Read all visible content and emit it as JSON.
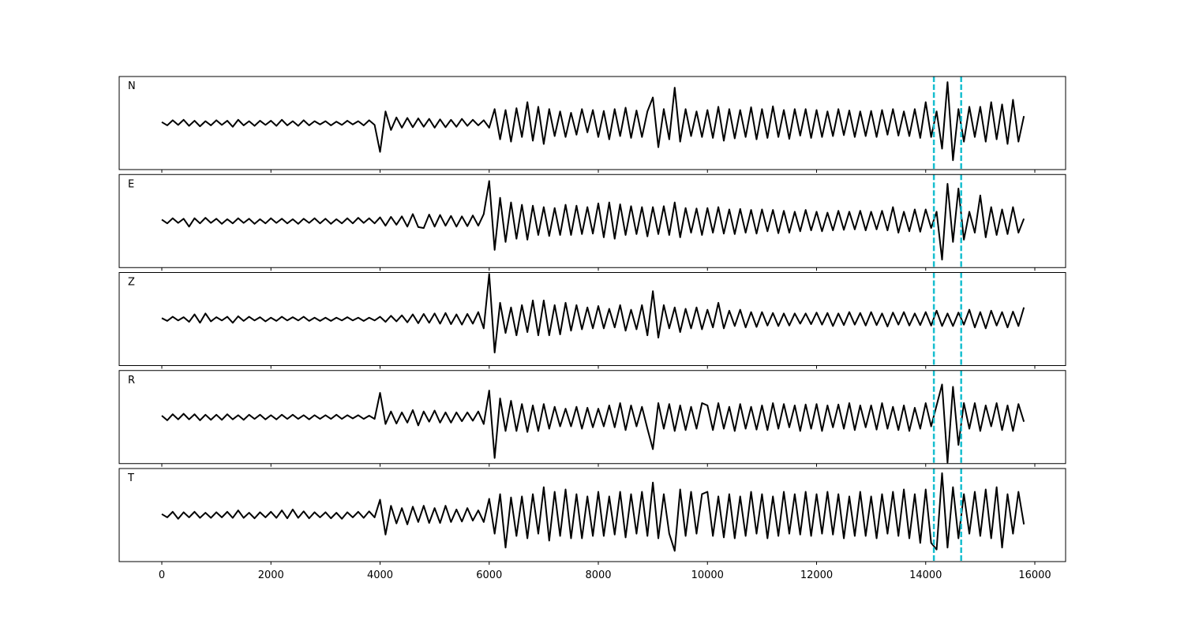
{
  "chart_data": {
    "type": "line",
    "xlim": [
      -781,
      16564
    ],
    "xticks": [
      0,
      2000,
      4000,
      6000,
      8000,
      10000,
      12000,
      14000,
      16000
    ],
    "ylim": [
      -1,
      1
    ],
    "line_color": "#000000",
    "vlines": {
      "values": [
        14150,
        14650
      ],
      "color": "#17becf",
      "style": "dashed"
    },
    "x": [
      0,
      100,
      200,
      300,
      400,
      500,
      600,
      700,
      800,
      900,
      1000,
      1100,
      1200,
      1300,
      1400,
      1500,
      1600,
      1700,
      1800,
      1900,
      2000,
      2100,
      2200,
      2300,
      2400,
      2500,
      2600,
      2700,
      2800,
      2900,
      3000,
      3100,
      3200,
      3300,
      3400,
      3500,
      3600,
      3700,
      3800,
      3900,
      4000,
      4100,
      4200,
      4300,
      4400,
      4500,
      4600,
      4700,
      4800,
      4900,
      5000,
      5100,
      5200,
      5300,
      5400,
      5500,
      5600,
      5700,
      5800,
      5900,
      6000,
      6100,
      6200,
      6300,
      6400,
      6500,
      6600,
      6700,
      6800,
      6900,
      7000,
      7100,
      7200,
      7300,
      7400,
      7500,
      7600,
      7700,
      7800,
      7900,
      8000,
      8100,
      8200,
      8300,
      8400,
      8500,
      8600,
      8700,
      8800,
      8900,
      9000,
      9100,
      9200,
      9300,
      9400,
      9500,
      9600,
      9700,
      9800,
      9900,
      10000,
      10100,
      10200,
      10300,
      10400,
      10500,
      10600,
      10700,
      10800,
      10900,
      11000,
      11100,
      11200,
      11300,
      11400,
      11500,
      11600,
      11700,
      11800,
      11900,
      12000,
      12100,
      12200,
      12300,
      12400,
      12500,
      12600,
      12700,
      12800,
      12900,
      13000,
      13100,
      13200,
      13300,
      13400,
      13500,
      13600,
      13700,
      13800,
      13900,
      14000,
      14100,
      14200,
      14300,
      14400,
      14500,
      14600,
      14700,
      14800,
      14900,
      15000,
      15100,
      15200,
      15300,
      15400,
      15500,
      15600,
      15700,
      15800
    ],
    "panels": [
      {
        "label": "N",
        "values": [
          0.02,
          -0.05,
          0.06,
          -0.04,
          0.07,
          -0.06,
          0.05,
          -0.07,
          0.04,
          -0.05,
          0.06,
          -0.04,
          0.05,
          -0.08,
          0.07,
          -0.05,
          0.04,
          -0.06,
          0.05,
          -0.04,
          0.05,
          -0.06,
          0.07,
          -0.05,
          0.04,
          -0.06,
          0.06,
          -0.05,
          0.04,
          -0.03,
          0.04,
          -0.05,
          0.03,
          -0.04,
          0.05,
          -0.03,
          0.04,
          -0.05,
          0.06,
          -0.04,
          -0.62,
          0.25,
          -0.15,
          0.12,
          -0.1,
          0.11,
          -0.09,
          0.1,
          -0.08,
          0.09,
          -0.1,
          0.08,
          -0.09,
          0.07,
          -0.08,
          0.09,
          -0.06,
          0.07,
          -0.05,
          0.06,
          -0.1,
          0.3,
          -0.35,
          0.28,
          -0.4,
          0.32,
          -0.3,
          0.45,
          -0.38,
          0.35,
          -0.45,
          0.3,
          -0.28,
          0.25,
          -0.3,
          0.22,
          -0.25,
          0.3,
          -0.2,
          0.28,
          -0.3,
          0.26,
          -0.35,
          0.3,
          -0.28,
          0.33,
          -0.32,
          0.27,
          -0.3,
          0.25,
          0.55,
          -0.52,
          0.3,
          -0.35,
          0.76,
          -0.4,
          0.3,
          -0.28,
          0.25,
          -0.3,
          0.28,
          -0.32,
          0.35,
          -0.38,
          0.3,
          -0.33,
          0.28,
          -0.3,
          0.34,
          -0.35,
          0.3,
          -0.32,
          0.36,
          -0.3,
          0.28,
          -0.34,
          0.3,
          -0.27,
          0.3,
          -0.32,
          0.28,
          -0.3,
          0.25,
          -0.28,
          0.3,
          -0.26,
          0.27,
          -0.3,
          0.25,
          -0.28,
          0.26,
          -0.3,
          0.28,
          -0.25,
          0.3,
          -0.27,
          0.25,
          -0.28,
          0.3,
          -0.32,
          0.45,
          -0.3,
          0.25,
          -0.55,
          0.88,
          -0.8,
          0.3,
          -0.4,
          0.35,
          -0.3,
          0.35,
          -0.4,
          0.45,
          -0.35,
          0.4,
          -0.45,
          0.5,
          -0.4,
          0.15
        ]
      },
      {
        "label": "E",
        "values": [
          0.03,
          -0.05,
          0.06,
          -0.04,
          0.05,
          -0.12,
          0.06,
          -0.05,
          0.07,
          -0.04,
          0.05,
          -0.06,
          0.04,
          -0.05,
          0.06,
          -0.04,
          0.05,
          -0.06,
          0.04,
          -0.05,
          0.06,
          -0.04,
          0.05,
          -0.05,
          0.04,
          -0.06,
          0.05,
          -0.04,
          0.06,
          -0.05,
          0.05,
          -0.06,
          0.04,
          -0.05,
          0.06,
          -0.05,
          0.07,
          -0.04,
          0.06,
          -0.05,
          0.08,
          -0.1,
          0.09,
          -0.08,
          0.1,
          -0.12,
          0.15,
          -0.13,
          -0.15,
          0.14,
          -0.12,
          0.13,
          -0.1,
          0.11,
          -0.12,
          0.1,
          -0.11,
          0.12,
          -0.1,
          0.15,
          0.86,
          -0.62,
          0.5,
          -0.45,
          0.4,
          -0.38,
          0.35,
          -0.4,
          0.33,
          -0.3,
          0.3,
          -0.32,
          0.28,
          -0.3,
          0.35,
          -0.3,
          0.33,
          -0.28,
          0.3,
          -0.27,
          0.38,
          -0.35,
          0.4,
          -0.38,
          0.36,
          -0.3,
          0.32,
          -0.28,
          0.3,
          -0.33,
          0.3,
          -0.28,
          0.32,
          -0.3,
          0.4,
          -0.35,
          0.28,
          -0.25,
          0.27,
          -0.3,
          0.28,
          -0.25,
          0.3,
          -0.27,
          0.25,
          -0.28,
          0.26,
          -0.25,
          0.24,
          -0.27,
          0.25,
          -0.22,
          0.24,
          -0.26,
          0.22,
          -0.25,
          0.2,
          -0.22,
          0.24,
          -0.2,
          0.2,
          -0.22,
          0.18,
          -0.2,
          0.22,
          -0.19,
          0.2,
          -0.18,
          0.22,
          -0.2,
          0.2,
          -0.18,
          0.22,
          -0.2,
          0.3,
          -0.25,
          0.2,
          -0.22,
          0.25,
          -0.23,
          0.25,
          -0.15,
          0.2,
          -0.83,
          0.8,
          -0.45,
          0.7,
          -0.4,
          0.2,
          -0.25,
          0.55,
          -0.35,
          0.3,
          -0.3,
          0.25,
          -0.28,
          0.3,
          -0.25,
          0.05
        ]
      },
      {
        "label": "Z",
        "values": [
          0.02,
          -0.04,
          0.05,
          -0.03,
          0.04,
          -0.06,
          0.1,
          -0.08,
          0.12,
          -0.05,
          0.04,
          -0.03,
          0.05,
          -0.08,
          0.06,
          -0.04,
          0.05,
          -0.03,
          0.04,
          -0.05,
          0.03,
          -0.04,
          0.05,
          -0.03,
          0.04,
          -0.03,
          0.05,
          -0.04,
          0.03,
          -0.04,
          0.03,
          -0.04,
          0.03,
          -0.03,
          0.04,
          -0.03,
          0.03,
          -0.04,
          0.03,
          -0.03,
          0.05,
          -0.06,
          0.07,
          -0.05,
          0.08,
          -0.07,
          0.1,
          -0.09,
          0.11,
          -0.08,
          0.12,
          -0.1,
          0.13,
          -0.11,
          0.1,
          -0.12,
          0.11,
          -0.1,
          0.15,
          -0.2,
          0.97,
          -0.72,
          0.35,
          -0.3,
          0.25,
          -0.35,
          0.3,
          -0.28,
          0.4,
          -0.35,
          0.4,
          -0.35,
          0.3,
          -0.33,
          0.35,
          -0.25,
          0.3,
          -0.22,
          0.25,
          -0.2,
          0.28,
          -0.2,
          0.22,
          -0.18,
          0.3,
          -0.25,
          0.2,
          -0.22,
          0.3,
          -0.35,
          0.6,
          -0.4,
          0.3,
          -0.2,
          0.25,
          -0.28,
          0.22,
          -0.2,
          0.25,
          -0.22,
          0.2,
          -0.18,
          0.35,
          -0.2,
          0.18,
          -0.15,
          0.2,
          -0.18,
          0.15,
          -0.17,
          0.15,
          -0.14,
          0.13,
          -0.15,
          0.12,
          -0.14,
          0.12,
          -0.1,
          0.12,
          -0.11,
          0.14,
          -0.12,
          0.13,
          -0.15,
          0.12,
          -0.13,
          0.15,
          -0.12,
          0.13,
          -0.14,
          0.15,
          -0.13,
          0.12,
          -0.16,
          0.14,
          -0.12,
          0.15,
          -0.14,
          0.12,
          -0.13,
          0.15,
          -0.14,
          0.18,
          -0.15,
          0.12,
          -0.15,
          0.14,
          -0.12,
          0.2,
          -0.18,
          0.15,
          -0.2,
          0.18,
          -0.14,
          0.15,
          -0.18,
          0.16,
          -0.15,
          0.25
        ]
      },
      {
        "label": "R",
        "values": [
          0.03,
          -0.07,
          0.06,
          -0.05,
          0.07,
          -0.05,
          0.06,
          -0.07,
          0.05,
          -0.06,
          0.05,
          -0.06,
          0.06,
          -0.05,
          0.04,
          -0.06,
          0.05,
          -0.04,
          0.05,
          -0.05,
          0.04,
          -0.05,
          0.05,
          -0.04,
          0.05,
          -0.04,
          0.04,
          -0.05,
          0.04,
          -0.04,
          0.04,
          -0.04,
          0.05,
          -0.04,
          0.04,
          -0.03,
          0.04,
          -0.04,
          0.03,
          -0.04,
          0.52,
          -0.15,
          0.12,
          -0.14,
          0.1,
          -0.12,
          0.15,
          -0.18,
          0.12,
          -0.1,
          0.14,
          -0.12,
          0.1,
          -0.12,
          0.1,
          -0.09,
          0.1,
          -0.08,
          0.12,
          -0.15,
          0.57,
          -0.88,
          0.4,
          -0.3,
          0.35,
          -0.3,
          0.28,
          -0.32,
          0.25,
          -0.3,
          0.28,
          -0.25,
          0.22,
          -0.2,
          0.18,
          -0.2,
          0.22,
          -0.25,
          0.2,
          -0.22,
          0.18,
          -0.2,
          0.25,
          -0.22,
          0.3,
          -0.28,
          0.25,
          -0.2,
          0.22,
          -0.25,
          -0.69,
          0.3,
          -0.25,
          0.28,
          -0.3,
          0.25,
          -0.28,
          0.22,
          -0.25,
          0.3,
          0.25,
          -0.28,
          0.3,
          -0.25,
          0.22,
          -0.3,
          0.28,
          -0.25,
          0.22,
          -0.27,
          0.25,
          -0.28,
          0.3,
          -0.25,
          0.28,
          -0.22,
          0.25,
          -0.3,
          0.27,
          -0.25,
          0.28,
          -0.3,
          0.25,
          -0.22,
          0.27,
          -0.25,
          0.3,
          -0.28,
          0.25,
          -0.22,
          0.25,
          -0.27,
          0.3,
          -0.25,
          0.22,
          -0.28,
          0.25,
          -0.3,
          0.2,
          -0.25,
          0.3,
          -0.2,
          0.25,
          0.7,
          -0.98,
          0.65,
          -0.6,
          0.3,
          -0.25,
          0.3,
          -0.3,
          0.25,
          -0.2,
          0.3,
          -0.28,
          0.25,
          -0.3,
          0.28,
          -0.1
        ]
      },
      {
        "label": "T",
        "values": [
          0.02,
          -0.05,
          0.07,
          -0.08,
          0.06,
          -0.05,
          0.07,
          -0.06,
          0.05,
          -0.06,
          0.06,
          -0.05,
          0.07,
          -0.06,
          0.1,
          -0.06,
          0.05,
          -0.07,
          0.06,
          -0.05,
          0.07,
          -0.06,
          0.1,
          -0.07,
          0.12,
          -0.06,
          0.08,
          -0.07,
          0.06,
          -0.05,
          0.06,
          -0.07,
          0.05,
          -0.08,
          0.06,
          -0.05,
          0.07,
          -0.06,
          0.08,
          -0.05,
          0.33,
          -0.42,
          0.2,
          -0.18,
          0.15,
          -0.2,
          0.18,
          -0.15,
          0.2,
          -0.17,
          0.15,
          -0.17,
          0.2,
          -0.15,
          0.12,
          -0.14,
          0.15,
          -0.12,
          0.1,
          -0.15,
          0.35,
          -0.4,
          0.45,
          -0.7,
          0.38,
          -0.45,
          0.4,
          -0.5,
          0.45,
          -0.4,
          0.6,
          -0.55,
          0.5,
          -0.45,
          0.55,
          -0.5,
          0.45,
          -0.5,
          0.4,
          -0.45,
          0.5,
          -0.45,
          0.4,
          -0.42,
          0.5,
          -0.48,
          0.45,
          -0.4,
          0.5,
          -0.45,
          0.7,
          -0.5,
          0.45,
          -0.4,
          -0.77,
          0.55,
          -0.45,
          0.5,
          -0.4,
          0.45,
          0.5,
          -0.45,
          0.4,
          -0.48,
          0.45,
          -0.5,
          0.4,
          -0.45,
          0.5,
          -0.4,
          0.45,
          -0.5,
          0.4,
          -0.45,
          0.5,
          -0.4,
          0.45,
          -0.42,
          0.5,
          -0.45,
          0.45,
          -0.4,
          0.5,
          -0.42,
          0.45,
          -0.5,
          0.4,
          -0.45,
          0.5,
          -0.45,
          0.4,
          -0.5,
          0.45,
          -0.4,
          0.5,
          -0.45,
          0.55,
          -0.5,
          0.45,
          -0.6,
          0.55,
          -0.6,
          -0.74,
          0.9,
          -0.7,
          0.6,
          -0.5,
          0.45,
          -0.4,
          0.5,
          -0.45,
          0.55,
          -0.5,
          0.6,
          -0.7,
          0.45,
          -0.4,
          0.5,
          -0.2
        ]
      }
    ]
  }
}
